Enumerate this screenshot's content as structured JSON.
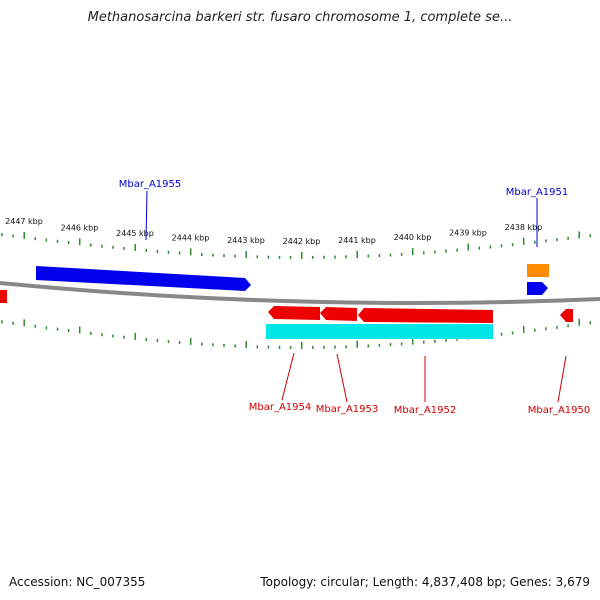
{
  "title": "Methanosarcina barkeri str. fusaro chromosome 1, complete se...",
  "footer": {
    "accession": "Accession: NC_007355",
    "summary": "Topology: circular; Length: 4,837,408 bp; Genes: 3,679"
  },
  "colors": {
    "backbone": "#888888",
    "ticks": "#2e8b2e",
    "forward_gene": "#0000ee",
    "reverse_gene": "#ee0000",
    "orange_feature": "#ff8c00",
    "cyan_feature": "#00e5e5",
    "label_forward": "#0000cc",
    "label_reverse": "#cc0000"
  },
  "scale_labels": [
    "2447 kbp",
    "2446 kbp",
    "2445 kbp",
    "2444 kbp",
    "2443 kbp",
    "2442 kbp",
    "2441 kbp",
    "2440 kbp",
    "2439 kbp",
    "2438 kbp"
  ],
  "gene_labels": [
    {
      "id": "g1955",
      "text": "Mbar_A1955",
      "strand": "forward"
    },
    {
      "id": "g1951",
      "text": "Mbar_A1951",
      "strand": "forward"
    },
    {
      "id": "g1954",
      "text": "Mbar_A1954",
      "strand": "reverse"
    },
    {
      "id": "g1953",
      "text": "Mbar_A1953",
      "strand": "reverse"
    },
    {
      "id": "g1952",
      "text": "Mbar_A1952",
      "strand": "reverse"
    },
    {
      "id": "g1950",
      "text": "Mbar_A1950",
      "strand": "reverse"
    }
  ]
}
